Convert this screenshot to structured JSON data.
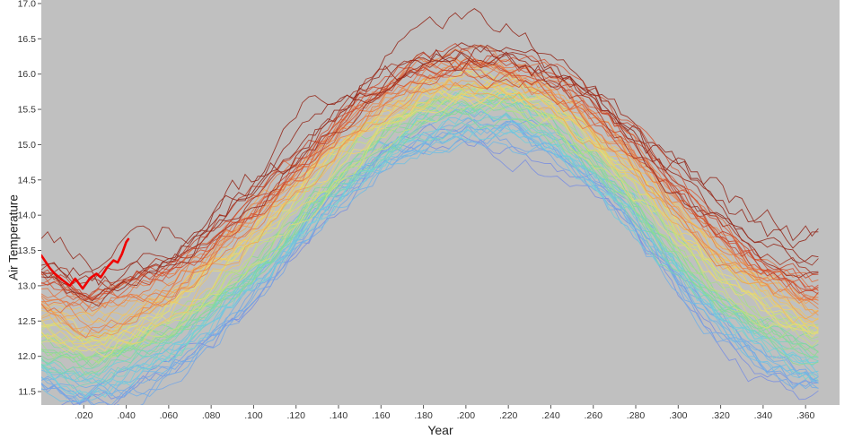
{
  "chart_data": {
    "type": "line",
    "title": "",
    "xlabel": "Year",
    "ylabel": "Air Temperature",
    "xlim": [
      0,
      0.376
    ],
    "ylim": [
      11.31,
      17.05
    ],
    "grid": false,
    "legend": "none",
    "plot_background": "#c0c0c0",
    "x_ticks": [
      0.02,
      0.04,
      0.06,
      0.08,
      0.1,
      0.12,
      0.14,
      0.16,
      0.18,
      0.2,
      0.22,
      0.24,
      0.26,
      0.28,
      0.3,
      0.32,
      0.34,
      0.36
    ],
    "x_tick_labels": [
      ".020",
      ".040",
      ".060",
      ".080",
      ".100",
      ".120",
      ".140",
      ".160",
      ".180",
      ".200",
      ".220",
      ".240",
      ".260",
      ".280",
      ".300",
      ".320",
      ".340",
      ".360"
    ],
    "y_ticks": [
      11.5,
      12.0,
      12.5,
      13.0,
      13.5,
      14.0,
      14.5,
      15.0,
      15.5,
      16.0,
      16.5,
      17.0
    ],
    "y_tick_labels": [
      "11.5",
      "12.0",
      "12.5",
      "13.0",
      "13.5",
      "14.0",
      "14.5",
      "15.0",
      "15.5",
      "16.0",
      "16.5",
      "17.0"
    ],
    "ensemble": {
      "description": "ensemble of model runs, seasonal-cycle hump peaking near x=0.20, colored cool(blue,low) to warm(dark red,high)",
      "n_lines": 64,
      "outlier_offsets": [
        1.18,
        1.34
      ],
      "seed": 7,
      "stroke_width": 0.9,
      "opacity": 0.9,
      "noise_amplitude": 0.13,
      "outlier_noise_amplitude": 0.22,
      "half_width_max": 0.88,
      "half_width_min": 0.6,
      "palette": [
        "#7b8fe0",
        "#6fb4e8",
        "#72d2d8",
        "#7fd89a",
        "#b5e07f",
        "#e8dc74",
        "#f0b55c",
        "#e8824a",
        "#d14f33",
        "#93291c"
      ],
      "mean_curve": {
        "x": [
          0,
          0.01,
          0.02,
          0.03,
          0.04,
          0.06,
          0.08,
          0.1,
          0.12,
          0.14,
          0.16,
          0.18,
          0.2,
          0.22,
          0.24,
          0.26,
          0.28,
          0.3,
          0.32,
          0.34,
          0.36,
          0.368
        ],
        "y": [
          12.35,
          12.25,
          12.15,
          12.18,
          12.28,
          12.55,
          13.05,
          13.55,
          14.15,
          14.75,
          15.25,
          15.6,
          15.75,
          15.7,
          15.45,
          15.0,
          14.4,
          13.7,
          13.1,
          12.65,
          12.4,
          12.35
        ]
      }
    },
    "highlight_series": {
      "name": "observed-red-line",
      "color": "#f00000",
      "stroke_width": 2.6,
      "points": [
        [
          0.0,
          13.43
        ],
        [
          0.004,
          13.25
        ],
        [
          0.006,
          13.18
        ],
        [
          0.01,
          13.08
        ],
        [
          0.0135,
          13.0
        ],
        [
          0.016,
          13.1
        ],
        [
          0.0195,
          12.96
        ],
        [
          0.023,
          13.11
        ],
        [
          0.026,
          13.17
        ],
        [
          0.028,
          13.12
        ],
        [
          0.031,
          13.26
        ],
        [
          0.034,
          13.36
        ],
        [
          0.036,
          13.33
        ],
        [
          0.038,
          13.45
        ],
        [
          0.04,
          13.62
        ],
        [
          0.041,
          13.66
        ]
      ]
    }
  }
}
